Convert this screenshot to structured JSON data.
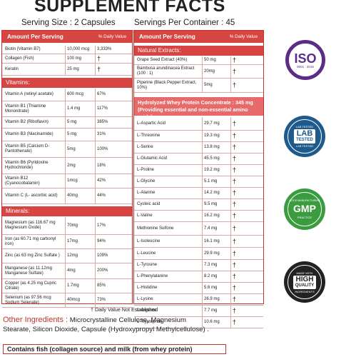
{
  "title": "SUPPLEMENT FACTS",
  "serving_size": "Serving Size : 2 Capsules",
  "servings_per_container": "Servings Per Container : 45",
  "left": {
    "header_amount": "Amount Per Serving",
    "header_dv": "% Daily Value",
    "top_rows": [
      {
        "name": "Biotin (Vitamin B7)",
        "amount": "10,000 mcg",
        "dv": "3,333%"
      },
      {
        "name": "Collagen (Fish)",
        "amount": "100 mg",
        "dv": "†"
      },
      {
        "name": "Keratin",
        "amount": "25 mg",
        "dv": "†"
      }
    ],
    "vitamins_title": "Vitamins:",
    "vitamins": [
      {
        "name": "Vitamin A (retinyl acetate)",
        "amount": "600 mcg",
        "dv": "67%"
      },
      {
        "name": "Vitamin B1 (Thiamine Mononitrate)",
        "amount": "1.4 mg",
        "dv": "117%"
      },
      {
        "name": "Vitamin B2 (Riboflavin)",
        "amount": "5 mg",
        "dv": "385%"
      },
      {
        "name": "Vitamin B3 (Niacinamide)",
        "amount": "5 mg",
        "dv": "31%"
      },
      {
        "name": "Vitamin B5 (Calcium D-Pantothenate)",
        "amount": "5mg",
        "dv": "100%"
      },
      {
        "name": "Vitamin B6 (Pyridoxine Hydrochloride)",
        "amount": "2mg",
        "dv": "18%"
      },
      {
        "name": "Vitamin B12 (Cyanocobalamin)",
        "amount": "1mcg",
        "dv": "42%"
      },
      {
        "name": "Vitamin C (L- ascorbic acid)",
        "amount": "40mg",
        "dv": "44%"
      }
    ],
    "minerals_title": "Minerals:",
    "minerals": [
      {
        "name": "Magnesium (as 116.67 mg Magnesium Oxide)",
        "amount": "70mg",
        "dv": "17%"
      },
      {
        "name": "Iron (as 60.71 mg carbonyl iron)",
        "amount": "17mg",
        "dv": "94%"
      },
      {
        "name": "Zinc (as 63 mg Zinc Sulfate )",
        "amount": "12mg",
        "dv": "109%"
      },
      {
        "name": "Manganese (as 11.12mg Manganese Sulfate)",
        "amount": "4mg",
        "dv": "200%"
      },
      {
        "name": "Copper (as 4.25 mg Cupric Citrate)",
        "amount": "1.7mg",
        "dv": "85%"
      },
      {
        "name": "Selenium (as 97.56 mcg Sodium Selenate)",
        "amount": "40mcg",
        "dv": "73%"
      }
    ]
  },
  "right": {
    "header_amount": "Amount Per Serving",
    "header_dv": "% Daily Value",
    "natural_title": "Natural Extracts:",
    "natural": [
      {
        "name": "Grape Seed Extract (40%)",
        "amount": "50 mg",
        "dv": "†"
      },
      {
        "name": "Bambusa arundinacea Extract  (100 : 1)",
        "amount": "20mg",
        "dv": "†"
      },
      {
        "name": "Piperine (Black Pepper Extract, 10%)",
        "amount": "5mg",
        "dv": "†"
      }
    ],
    "whey_title_1": "Hydrolyzed Whey Protein Concentrate : 345 mg",
    "whey_title_2": "(Providing essential and non-essential amino acids)",
    "amino": [
      {
        "name": "L-Aspartic Acid",
        "amount": "29.7 mg",
        "dv": "†"
      },
      {
        "name": "L-Threonine",
        "amount": "19.3 mg",
        "dv": "†"
      },
      {
        "name": "L-Serine",
        "amount": "13.8 mg",
        "dv": "†"
      },
      {
        "name": "L-Glutamic Acid",
        "amount": "45.5 mg",
        "dv": "†"
      },
      {
        "name": "L-Proline",
        "amount": "19.2 mg",
        "dv": "†"
      },
      {
        "name": "L-Glycine",
        "amount": "5.1 mg",
        "dv": "†"
      },
      {
        "name": "L-Alanine",
        "amount": "14.2 mg",
        "dv": "†"
      },
      {
        "name": "Cysteic acid",
        "amount": "9.5 mg",
        "dv": "†"
      },
      {
        "name": "L-Valine",
        "amount": "16.2 mg",
        "dv": "†"
      },
      {
        "name": "Methionine Sulfone",
        "amount": "7.4 mg",
        "dv": "†"
      },
      {
        "name": "L-Isoleucine",
        "amount": "16.1 mg",
        "dv": "†"
      },
      {
        "name": "L-Leucine",
        "amount": "29.9 mg",
        "dv": "†"
      },
      {
        "name": "L-Tyrosine",
        "amount": "7.3 mg",
        "dv": "†"
      },
      {
        "name": "L-Phenylalanine",
        "amount": "8.2 mg",
        "dv": "†"
      },
      {
        "name": "L-Histidine",
        "amount": "5.6 mg",
        "dv": "†"
      },
      {
        "name": "L-Lysine",
        "amount": "26.9 mg",
        "dv": "†"
      },
      {
        "name": "L-Arginine",
        "amount": "7.7 mg",
        "dv": "†"
      },
      {
        "name": "L-Tryptophan",
        "amount": "10.6 mg",
        "dv": "†"
      }
    ]
  },
  "footnote": "† Daily Value Not Established",
  "other_label": "Other Ingredients :",
  "other_line1": "Microcrystalline Cellulose, Magnesium",
  "other_line2": "Stearate, Silicon Dioxide, Capsule (Hydroxypropyl Methylcellulose) .",
  "contains": "Contains fish (collagen source) and milk (from whey protein)",
  "badges": {
    "iso_main": "ISO",
    "iso_sub": "9001 : 2015",
    "lab_top": "LAB TESTED",
    "lab_main_1": "LAB",
    "lab_main_2": "TESTED",
    "lab_bottom": "LAB TESTED",
    "gmp_top": "GOOD MANUFACTURING",
    "gmp_main": "GMP",
    "gmp_bottom": "PRACTICE",
    "hq_top": "MADE WITH",
    "hq_main_1": "HIGH",
    "hq_main_2": "QUALITY",
    "hq_bottom": "INGREDIENTS"
  },
  "colors": {
    "accent": "#d64541",
    "iso": "#5b2d87",
    "lab": "#1f5a8c",
    "gmp": "#3a9c3e",
    "hq": "#222222"
  }
}
